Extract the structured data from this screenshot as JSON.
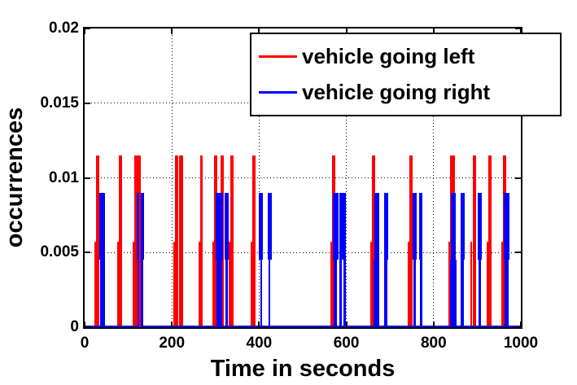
{
  "figure": {
    "xlabel": "Time in seconds",
    "ylabel": "occurrences",
    "background": "#ffffff",
    "axis_color": "#000000",
    "legend": [
      {
        "label": "vehicle going left",
        "color": "#ff0000"
      },
      {
        "label": "vehicle going right",
        "color": "#0000ff"
      }
    ]
  },
  "chart_data": {
    "type": "bar",
    "title": "",
    "xlabel": "Time in seconds",
    "ylabel": "occurrences",
    "xlim": [
      0,
      1000
    ],
    "ylim": [
      0,
      0.02
    ],
    "xticks": [
      0,
      200,
      400,
      600,
      800,
      1000
    ],
    "xtick_labels": [
      "0",
      "200",
      "400",
      "600",
      "800",
      "1000"
    ],
    "yticks": [
      0,
      0.005,
      0.01,
      0.015,
      0.02
    ],
    "ytick_labels": [
      "0",
      "0.005",
      "0.01",
      "0.015",
      "0.02"
    ],
    "grid": "dotted",
    "legend_position": "top-right",
    "series": [
      {
        "name": "vehicle going left",
        "color": "#ff0000",
        "full_height": 0.0115,
        "half_height": 0.0057,
        "bars": [
          {
            "t": 30,
            "w": 4
          },
          {
            "t": 82,
            "w": 4
          },
          {
            "t": 120,
            "w": 6
          },
          {
            "t": 211,
            "w": 4
          },
          {
            "t": 221,
            "w": 5
          },
          {
            "t": 268,
            "w": 3
          },
          {
            "t": 300,
            "w": 4
          },
          {
            "t": 315,
            "w": 4
          },
          {
            "t": 338,
            "w": 4
          },
          {
            "t": 388,
            "w": 4
          },
          {
            "t": 571,
            "w": 4
          },
          {
            "t": 662,
            "w": 4
          },
          {
            "t": 748,
            "w": 4
          },
          {
            "t": 843,
            "w": 6
          },
          {
            "t": 893,
            "w": 4
          },
          {
            "t": 929,
            "w": 4
          },
          {
            "t": 963,
            "w": 4
          }
        ],
        "half_bars": [
          {
            "t": 24,
            "w": 2
          },
          {
            "t": 76,
            "w": 2
          },
          {
            "t": 112,
            "w": 2
          },
          {
            "t": 205,
            "w": 2
          },
          {
            "t": 263,
            "w": 2
          },
          {
            "t": 294,
            "w": 2
          },
          {
            "t": 309,
            "w": 2
          },
          {
            "t": 332,
            "w": 2
          },
          {
            "t": 382,
            "w": 2
          },
          {
            "t": 565,
            "w": 2
          },
          {
            "t": 656,
            "w": 2
          },
          {
            "t": 742,
            "w": 2
          },
          {
            "t": 835,
            "w": 2
          },
          {
            "t": 887,
            "w": 2
          },
          {
            "t": 923,
            "w": 2
          },
          {
            "t": 957,
            "w": 2
          }
        ],
        "overlay_bars": [
          {
            "t": 127,
            "w": 2
          }
        ]
      },
      {
        "name": "vehicle going right",
        "color": "#0000ff",
        "full_height": 0.009,
        "half_height": 0.0045,
        "bars": [
          {
            "t": 41,
            "wb": 6,
            "wt": 7
          },
          {
            "t": 128,
            "wb": 7,
            "wt": 9
          },
          {
            "t": 309,
            "wb": 7,
            "wt": 9
          },
          {
            "t": 326,
            "wb": 3,
            "wt": 5
          },
          {
            "t": 404,
            "wb": 2,
            "wt": 5
          },
          {
            "t": 424,
            "wb": 2,
            "wt": 5
          },
          {
            "t": 575,
            "wb": 4,
            "wt": 7
          },
          {
            "t": 587,
            "wb": 3,
            "wt": 4
          },
          {
            "t": 596,
            "wb": 3,
            "wt": 4
          },
          {
            "t": 669,
            "wb": 7,
            "wt": 6
          },
          {
            "t": 691,
            "wb": 4,
            "wt": 5
          },
          {
            "t": 757,
            "wb": 3,
            "wt": 5
          },
          {
            "t": 771,
            "wb": 3,
            "wt": 4
          },
          {
            "t": 846,
            "wb": 8,
            "wt": 6
          },
          {
            "t": 866,
            "wb": 4,
            "wt": 5
          },
          {
            "t": 905,
            "wb": 3,
            "wt": 5
          },
          {
            "t": 968,
            "wb": 5,
            "wt": 7
          }
        ],
        "baseline": true
      }
    ]
  }
}
